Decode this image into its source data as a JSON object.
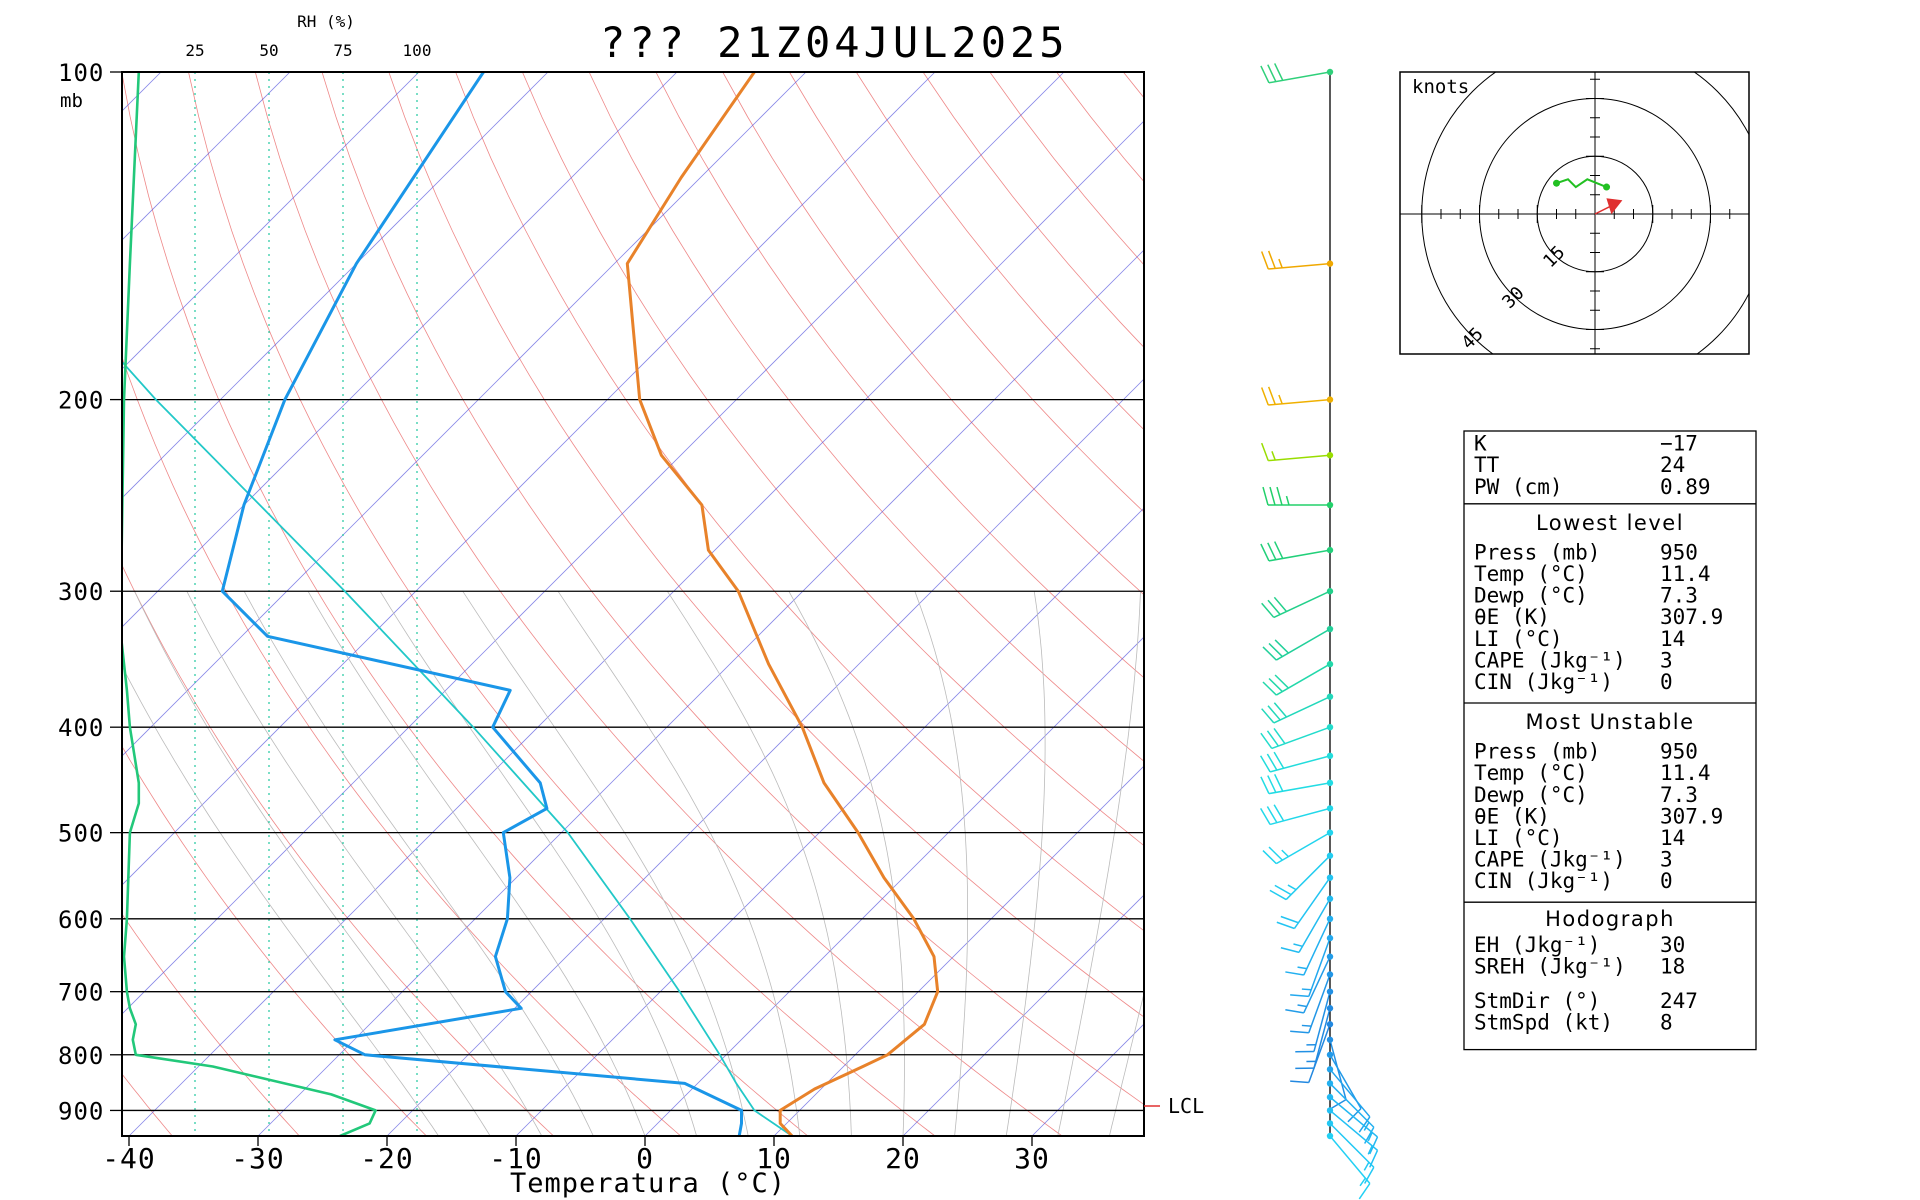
{
  "title": "??? 21Z04JUL2025",
  "chart_data": {
    "type": "skew-t log-p sounding",
    "title": "??? 21Z04JUL2025",
    "xlabel": "Temperatura (°C)",
    "ylabel": "mb",
    "x_ticks": [
      -40,
      -30,
      -20,
      -10,
      0,
      10,
      20,
      30
    ],
    "pressure_ticks": [
      100,
      200,
      300,
      400,
      500,
      600,
      700,
      800,
      900
    ],
    "pressure_range": [
      950,
      100
    ],
    "rh_axis": {
      "label": "RH (%)",
      "ticks": [
        25,
        50,
        75,
        100
      ]
    },
    "lcl_label": "LCL",
    "temperature": [
      {
        "p": 950,
        "t": 11.4
      },
      {
        "p": 925,
        "t": 9.5
      },
      {
        "p": 900,
        "t": 8.5
      },
      {
        "p": 860,
        "t": 9.5
      },
      {
        "p": 820,
        "t": 11.5
      },
      {
        "p": 800,
        "t": 12.5
      },
      {
        "p": 750,
        "t": 13.0
      },
      {
        "p": 700,
        "t": 11.5
      },
      {
        "p": 650,
        "t": 8.5
      },
      {
        "p": 600,
        "t": 4.0
      },
      {
        "p": 550,
        "t": -1.5
      },
      {
        "p": 500,
        "t": -7.0
      },
      {
        "p": 450,
        "t": -13.5
      },
      {
        "p": 400,
        "t": -19.5
      },
      {
        "p": 350,
        "t": -27.0
      },
      {
        "p": 300,
        "t": -35.0
      },
      {
        "p": 275,
        "t": -40.5
      },
      {
        "p": 250,
        "t": -44.5
      },
      {
        "p": 225,
        "t": -51.5
      },
      {
        "p": 200,
        "t": -57.5
      },
      {
        "p": 150,
        "t": -69.0
      },
      {
        "p": 125,
        "t": -71.5
      },
      {
        "p": 100,
        "t": -74.0
      }
    ],
    "dewpoint": [
      {
        "p": 950,
        "t": 7.3
      },
      {
        "p": 925,
        "t": 6.5
      },
      {
        "p": 900,
        "t": 5.5
      },
      {
        "p": 850,
        "t": -1.0
      },
      {
        "p": 800,
        "t": -28.0
      },
      {
        "p": 775,
        "t": -31.5
      },
      {
        "p": 725,
        "t": -19.5
      },
      {
        "p": 700,
        "t": -22.0
      },
      {
        "p": 650,
        "t": -25.5
      },
      {
        "p": 600,
        "t": -27.5
      },
      {
        "p": 550,
        "t": -30.5
      },
      {
        "p": 500,
        "t": -34.5
      },
      {
        "p": 475,
        "t": -33.0
      },
      {
        "p": 450,
        "t": -35.5
      },
      {
        "p": 400,
        "t": -43.5
      },
      {
        "p": 370,
        "t": -45.0
      },
      {
        "p": 330,
        "t": -68.0
      },
      {
        "p": 300,
        "t": -75.0
      },
      {
        "p": 250,
        "t": -80.0
      },
      {
        "p": 200,
        "t": -85.0
      },
      {
        "p": 150,
        "t": -90.0
      },
      {
        "p": 100,
        "t": -95.0
      }
    ],
    "parcel": [
      {
        "p": 950,
        "t": 11.4
      },
      {
        "p": 900,
        "t": 6.5
      },
      {
        "p": 850,
        "t": 3.0
      },
      {
        "p": 800,
        "t": -0.5
      },
      {
        "p": 700,
        "t": -8.5
      },
      {
        "p": 600,
        "t": -18.0
      },
      {
        "p": 500,
        "t": -29.5
      },
      {
        "p": 400,
        "t": -45.0
      },
      {
        "p": 300,
        "t": -65.5
      },
      {
        "p": 200,
        "t": -95.0
      },
      {
        "p": 150,
        "t": -115.0
      }
    ],
    "rh_profile": [
      {
        "p": 950,
        "rh": 74
      },
      {
        "p": 925,
        "rh": 84
      },
      {
        "p": 900,
        "rh": 86
      },
      {
        "p": 870,
        "rh": 71
      },
      {
        "p": 820,
        "rh": 31
      },
      {
        "p": 800,
        "rh": 5
      },
      {
        "p": 775,
        "rh": 4
      },
      {
        "p": 750,
        "rh": 5
      },
      {
        "p": 725,
        "rh": 3
      },
      {
        "p": 700,
        "rh": 2
      },
      {
        "p": 650,
        "rh": 1
      },
      {
        "p": 600,
        "rh": 2
      },
      {
        "p": 500,
        "rh": 3
      },
      {
        "p": 470,
        "rh": 6
      },
      {
        "p": 450,
        "rh": 6
      },
      {
        "p": 400,
        "rh": 3
      },
      {
        "p": 370,
        "rh": 2
      },
      {
        "p": 330,
        "rh": 0
      },
      {
        "p": 300,
        "rh": 0
      },
      {
        "p": 200,
        "rh": 1
      },
      {
        "p": 150,
        "rh": 3
      },
      {
        "p": 100,
        "rh": 6
      }
    ],
    "wind_barbs": [
      {
        "p": 100,
        "dir": 260,
        "spd": 30,
        "color": "#2fd07a"
      },
      {
        "p": 150,
        "dir": 265,
        "spd": 25,
        "color": "#f0a800"
      },
      {
        "p": 200,
        "dir": 265,
        "spd": 25,
        "color": "#f0b000"
      },
      {
        "p": 225,
        "dir": 265,
        "spd": 15,
        "color": "#99dd00"
      },
      {
        "p": 250,
        "dir": 270,
        "spd": 35,
        "color": "#22d06a"
      },
      {
        "p": 275,
        "dir": 260,
        "spd": 30,
        "color": "#22d07a"
      },
      {
        "p": 300,
        "dir": 245,
        "spd": 30,
        "color": "#22d08a"
      },
      {
        "p": 325,
        "dir": 240,
        "spd": 30,
        "color": "#22d09a"
      },
      {
        "p": 350,
        "dir": 240,
        "spd": 30,
        "color": "#22d8aa"
      },
      {
        "p": 375,
        "dir": 245,
        "spd": 30,
        "color": "#22d8bb"
      },
      {
        "p": 400,
        "dir": 250,
        "spd": 30,
        "color": "#22dccc"
      },
      {
        "p": 425,
        "dir": 255,
        "spd": 30,
        "color": "#22dcdc"
      },
      {
        "p": 450,
        "dir": 260,
        "spd": 30,
        "color": "#22dce4"
      },
      {
        "p": 475,
        "dir": 255,
        "spd": 30,
        "color": "#22d8ea"
      },
      {
        "p": 500,
        "dir": 240,
        "spd": 25,
        "color": "#22d4ee"
      },
      {
        "p": 525,
        "dir": 225,
        "spd": 25,
        "color": "#22ccf0"
      },
      {
        "p": 550,
        "dir": 215,
        "spd": 20,
        "color": "#22c4f2"
      },
      {
        "p": 575,
        "dir": 210,
        "spd": 15,
        "color": "#22bcf0"
      },
      {
        "p": 600,
        "dir": 205,
        "spd": 15,
        "color": "#22b0f0"
      },
      {
        "p": 625,
        "dir": 200,
        "spd": 15,
        "color": "#22a8ee"
      },
      {
        "p": 650,
        "dir": 205,
        "spd": 15,
        "color": "#229ce8"
      },
      {
        "p": 675,
        "dir": 200,
        "spd": 15,
        "color": "#2296e6"
      },
      {
        "p": 700,
        "dir": 195,
        "spd": 15,
        "color": "#2290e4"
      },
      {
        "p": 725,
        "dir": 195,
        "spd": 15,
        "color": "#228ae0"
      },
      {
        "p": 750,
        "dir": 200,
        "spd": 10,
        "color": "#2288e0"
      },
      {
        "p": 775,
        "dir": 165,
        "spd": 10,
        "color": "#2290e4"
      },
      {
        "p": 800,
        "dir": 150,
        "spd": 10,
        "color": "#229ae8"
      },
      {
        "p": 825,
        "dir": 140,
        "spd": 10,
        "color": "#22a4ec"
      },
      {
        "p": 850,
        "dir": 135,
        "spd": 15,
        "color": "#22b0f0"
      },
      {
        "p": 875,
        "dir": 130,
        "spd": 15,
        "color": "#22b8f2"
      },
      {
        "p": 900,
        "dir": 130,
        "spd": 15,
        "color": "#22c0f4"
      },
      {
        "p": 925,
        "dir": 135,
        "spd": 15,
        "color": "#22c8f4"
      },
      {
        "p": 950,
        "dir": 140,
        "spd": 15,
        "color": "#22d0f4"
      }
    ],
    "hodograph": {
      "units_label": "knots",
      "rings": [
        15,
        30,
        45
      ],
      "ring_labels": [
        "15",
        "30",
        "45"
      ],
      "points": [
        [
          3,
          7
        ],
        [
          -2,
          9
        ],
        [
          -5,
          7
        ],
        [
          -7,
          9
        ],
        [
          -10,
          8
        ]
      ],
      "storm_motion": [
        4,
        2
      ]
    }
  },
  "indices": {
    "basic": [
      {
        "label": "K",
        "value": "−17"
      },
      {
        "label": "TT",
        "value": "24"
      },
      {
        "label": "PW (cm)",
        "value": "0.89"
      }
    ],
    "lowest_level": {
      "header": "Lowest level",
      "rows": [
        {
          "label": "Press (mb)",
          "value": "950"
        },
        {
          "label": "Temp (°C)",
          "value": "11.4"
        },
        {
          "label": "Dewp (°C)",
          "value": "7.3"
        },
        {
          "label": "θE (K)",
          "value": "307.9"
        },
        {
          "label": "LI (°C)",
          "value": "14"
        },
        {
          "label": "CAPE (Jkg⁻¹)",
          "value": "3"
        },
        {
          "label": "CIN (Jkg⁻¹)",
          "value": "0"
        }
      ]
    },
    "most_unstable": {
      "header": "Most Unstable",
      "rows": [
        {
          "label": "Press (mb)",
          "value": "950"
        },
        {
          "label": "Temp (°C)",
          "value": "11.4"
        },
        {
          "label": "Dewp (°C)",
          "value": "7.3"
        },
        {
          "label": "θE (K)",
          "value": "307.9"
        },
        {
          "label": "LI (°C)",
          "value": "14"
        },
        {
          "label": "CAPE (Jkg⁻¹)",
          "value": "3"
        },
        {
          "label": "CIN (Jkg⁻¹)",
          "value": "0"
        }
      ]
    },
    "hodograph": {
      "header": "Hodograph",
      "rows": [
        {
          "label": "EH (Jkg⁻¹)",
          "value": "30"
        },
        {
          "label": "SREH (Jkg⁻¹)",
          "value": "18"
        },
        {
          "label": "StmDir (°)",
          "value": "247"
        },
        {
          "label": "StmSpd (kt)",
          "value": "8"
        }
      ]
    }
  },
  "colors": {
    "temperature": "#e8822a",
    "dewpoint": "#1a96e8",
    "parcel": "#22c8c8",
    "rh": "#22c87a",
    "dry_adiabat": "#e86060",
    "mixing_ratio": "#5555dd",
    "moist_adiabat": "#bbbbbb",
    "rh_guides": "#22c8a0",
    "lcl": "#e03030",
    "storm_arrow": "#e03030",
    "hodo_line": "#22c022"
  }
}
